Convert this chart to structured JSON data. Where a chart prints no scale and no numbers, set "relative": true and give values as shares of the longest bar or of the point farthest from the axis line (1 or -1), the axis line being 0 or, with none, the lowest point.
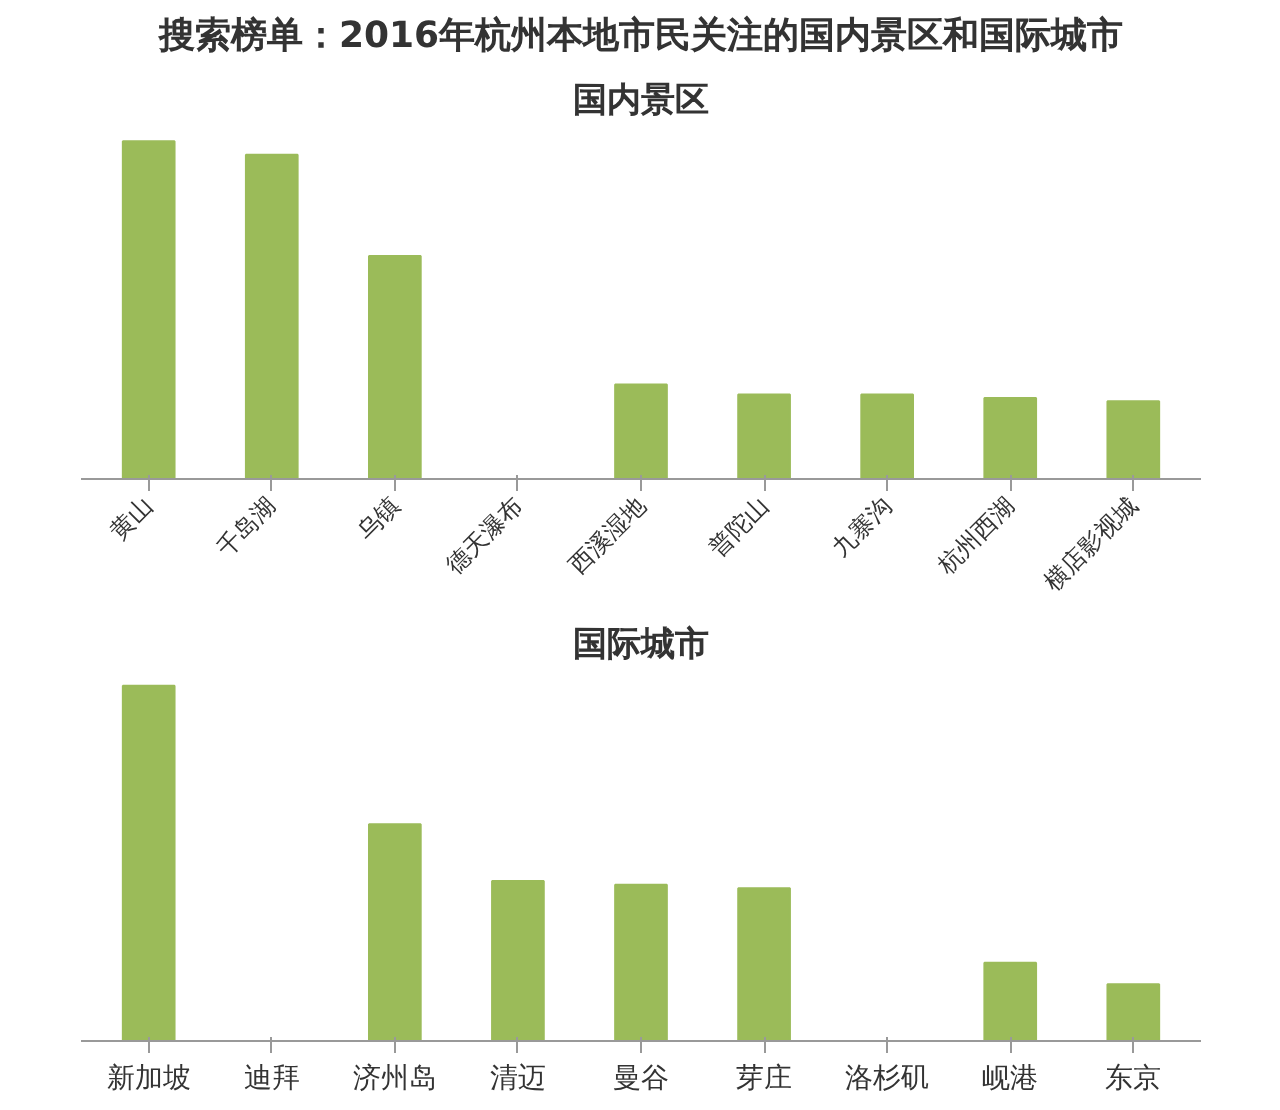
{
  "chart_data": [
    {
      "type": "bar",
      "title": "搜索榜单：2016年杭州本地市民关注的国内景区和国际城市",
      "subtitle": "国内景区",
      "relative": true,
      "grid": false,
      "color": "#9bbb59",
      "categories": [
        "黄山",
        "千岛湖",
        "乌镇",
        "德天瀑布",
        "西溪湿地",
        "普陀山",
        "九寨沟",
        "杭州西湖",
        "横店影视城"
      ],
      "values": [
        1,
        0.96,
        0.66,
        0,
        0.28,
        0.25,
        0.25,
        0.24,
        0.23
      ]
    },
    {
      "type": "bar",
      "title": "国际城市",
      "relative": true,
      "grid": false,
      "color": "#9bbb59",
      "categories": [
        "新加坡",
        "迪拜",
        "济州岛",
        "清迈",
        "曼谷",
        "芽庄",
        "洛杉矶",
        "岘港",
        "东京"
      ],
      "values": [
        1,
        0,
        0.61,
        0.45,
        0.44,
        0.43,
        0,
        0.22,
        0.16
      ]
    }
  ]
}
